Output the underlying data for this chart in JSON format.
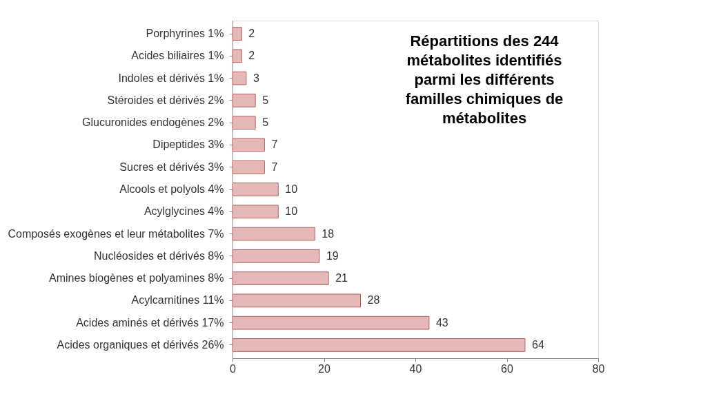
{
  "chart_data": {
    "type": "bar",
    "orientation": "horizontal",
    "title": "Répartitions des 244 métabolites identifiés parmi les différents familles chimiques de métabolites",
    "categories": [
      "Porphyrines 1%",
      "Acides biliaires 1%",
      "Indoles et dérivés 1%",
      "Stéroides et dérivés 2%",
      "Glucuronides endogènes 2%",
      "Dipeptides 3%",
      "Sucres et dérivés 3%",
      "Alcools et polyols 4%",
      "Acylglycines 4%",
      "Composés exogènes et leur métabolites 7%",
      "Nucléosides et dérivés 8%",
      "Amines biogènes et polyamines 8%",
      "Acylcarnitines 11%",
      "Acides aminés et dérivés 17%",
      "Acides organiques et dérivés 26%"
    ],
    "values": [
      2,
      2,
      3,
      5,
      5,
      7,
      7,
      10,
      10,
      18,
      19,
      21,
      28,
      43,
      64
    ],
    "color": "#e6b9b8",
    "xlim": [
      0,
      80
    ],
    "xticks": [
      0,
      20,
      40,
      60,
      80
    ],
    "grid": false,
    "data_labels": true
  }
}
